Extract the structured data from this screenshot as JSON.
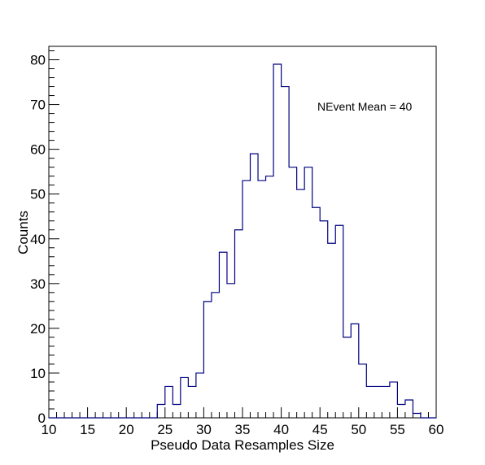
{
  "chart_data": {
    "type": "histogram",
    "xlabel": "Pseudo Data Resamples Size",
    "ylabel": "Counts",
    "annotation": "NEvent Mean = 40",
    "xlim": [
      10,
      60
    ],
    "ylim": [
      0,
      83
    ],
    "bin_width": 1,
    "x_ticks": [
      10,
      15,
      20,
      25,
      30,
      35,
      40,
      45,
      50,
      55,
      60
    ],
    "y_ticks": [
      0,
      10,
      20,
      30,
      40,
      50,
      60,
      70,
      80
    ],
    "line_color": "#000080",
    "bins": [
      {
        "x": 24,
        "count": 3
      },
      {
        "x": 25,
        "count": 7
      },
      {
        "x": 26,
        "count": 3
      },
      {
        "x": 27,
        "count": 9
      },
      {
        "x": 28,
        "count": 7
      },
      {
        "x": 29,
        "count": 10
      },
      {
        "x": 30,
        "count": 26
      },
      {
        "x": 31,
        "count": 28
      },
      {
        "x": 32,
        "count": 37
      },
      {
        "x": 33,
        "count": 30
      },
      {
        "x": 34,
        "count": 42
      },
      {
        "x": 35,
        "count": 53
      },
      {
        "x": 36,
        "count": 59
      },
      {
        "x": 37,
        "count": 53
      },
      {
        "x": 38,
        "count": 54
      },
      {
        "x": 39,
        "count": 79
      },
      {
        "x": 40,
        "count": 74
      },
      {
        "x": 41,
        "count": 56
      },
      {
        "x": 42,
        "count": 51
      },
      {
        "x": 43,
        "count": 56
      },
      {
        "x": 44,
        "count": 47
      },
      {
        "x": 45,
        "count": 44
      },
      {
        "x": 46,
        "count": 39
      },
      {
        "x": 47,
        "count": 43
      },
      {
        "x": 48,
        "count": 18
      },
      {
        "x": 49,
        "count": 21
      },
      {
        "x": 50,
        "count": 12
      },
      {
        "x": 51,
        "count": 7
      },
      {
        "x": 52,
        "count": 7
      },
      {
        "x": 53,
        "count": 7
      },
      {
        "x": 54,
        "count": 8
      },
      {
        "x": 55,
        "count": 3
      },
      {
        "x": 56,
        "count": 4
      },
      {
        "x": 57,
        "count": 1
      }
    ]
  }
}
